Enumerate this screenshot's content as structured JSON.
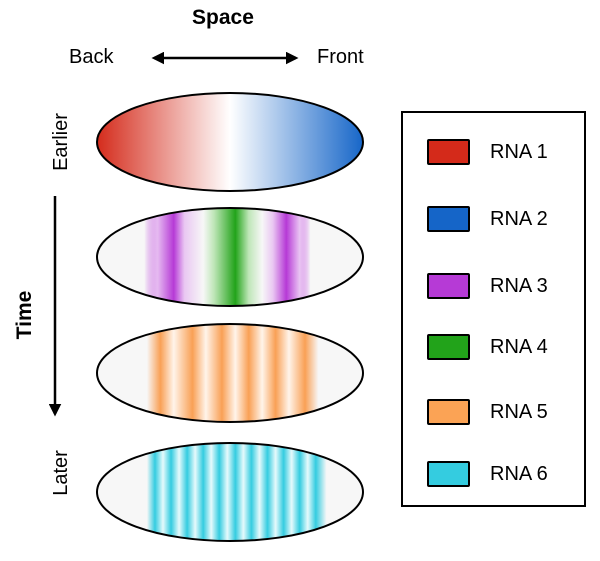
{
  "header": {
    "space_label": "Space",
    "back_label": "Back",
    "front_label": "Front"
  },
  "time_axis": {
    "time_label": "Time",
    "earlier_label": "Earlier",
    "later_label": "Later"
  },
  "embryos": [
    {
      "name": "gradient-embryo",
      "pattern": "red-to-blue-gradient",
      "colors": [
        "#d42a1a",
        "#ffffff",
        "#1565c8"
      ]
    },
    {
      "name": "rna3-rna4-embryo",
      "pattern": "stripes",
      "colors": [
        "#b63ad6",
        "#22a31a"
      ]
    },
    {
      "name": "rna5-embryo",
      "pattern": "seven-stripes",
      "colors": [
        "#f9a055"
      ]
    },
    {
      "name": "rna6-embryo",
      "pattern": "fourteen-stripes",
      "colors": [
        "#34cce0"
      ]
    }
  ],
  "legend": {
    "items": [
      {
        "label": "RNA 1",
        "color": "#d42a1a"
      },
      {
        "label": "RNA 2",
        "color": "#1565c8"
      },
      {
        "label": "RNA 3",
        "color": "#b63ad6"
      },
      {
        "label": "RNA 4",
        "color": "#22a31a"
      },
      {
        "label": "RNA 5",
        "color": "#fba355"
      },
      {
        "label": "RNA 6",
        "color": "#34cce0"
      }
    ]
  }
}
